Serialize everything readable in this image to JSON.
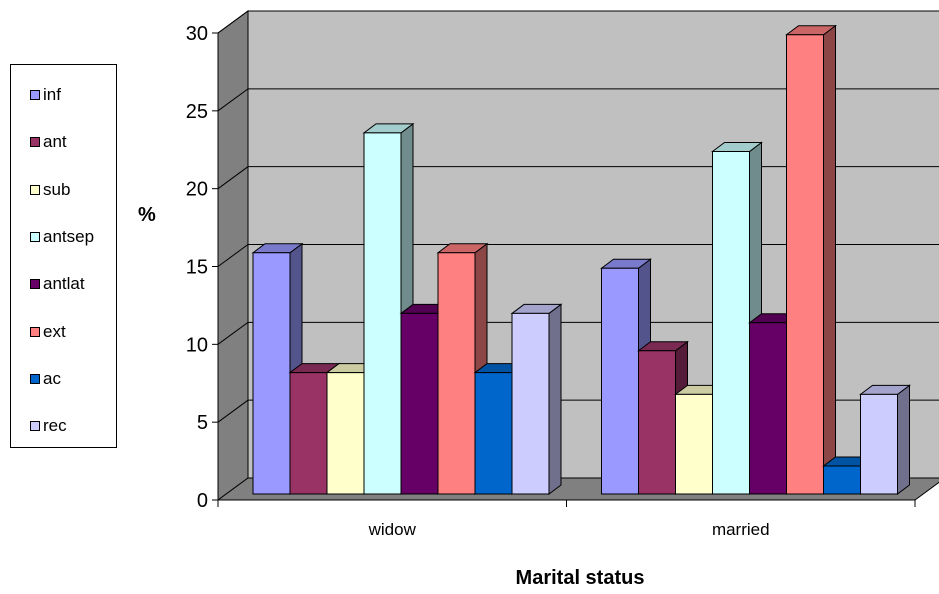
{
  "chart_data": {
    "type": "bar",
    "categories": [
      "widow",
      "married"
    ],
    "series": [
      {
        "name": "inf",
        "color": "#9999FF",
        "values": [
          15.5,
          14.5
        ]
      },
      {
        "name": "ant",
        "color": "#993366",
        "values": [
          7.8,
          9.2
        ]
      },
      {
        "name": "sub",
        "color": "#FFFFCC",
        "values": [
          7.8,
          6.4
        ]
      },
      {
        "name": "antsep",
        "color": "#CCFFFF",
        "values": [
          23.2,
          22.0
        ]
      },
      {
        "name": "antlat",
        "color": "#660066",
        "values": [
          11.6,
          11.0
        ]
      },
      {
        "name": "ext",
        "color": "#FF8080",
        "values": [
          15.5,
          29.5
        ]
      },
      {
        "name": "ac",
        "color": "#0066CC",
        "values": [
          7.8,
          1.8
        ]
      },
      {
        "name": "rec",
        "color": "#CCCCFF",
        "values": [
          11.6,
          6.4
        ]
      }
    ],
    "xlabel": "Marital status",
    "ylabel": "%",
    "ylim": [
      0,
      30
    ],
    "yticks": [
      "0",
      "5",
      "10",
      "15",
      "20",
      "25",
      "30"
    ],
    "grid": true,
    "legend_position": "left",
    "wall_color": "#C0C0C0",
    "floor_color": "#808080"
  }
}
